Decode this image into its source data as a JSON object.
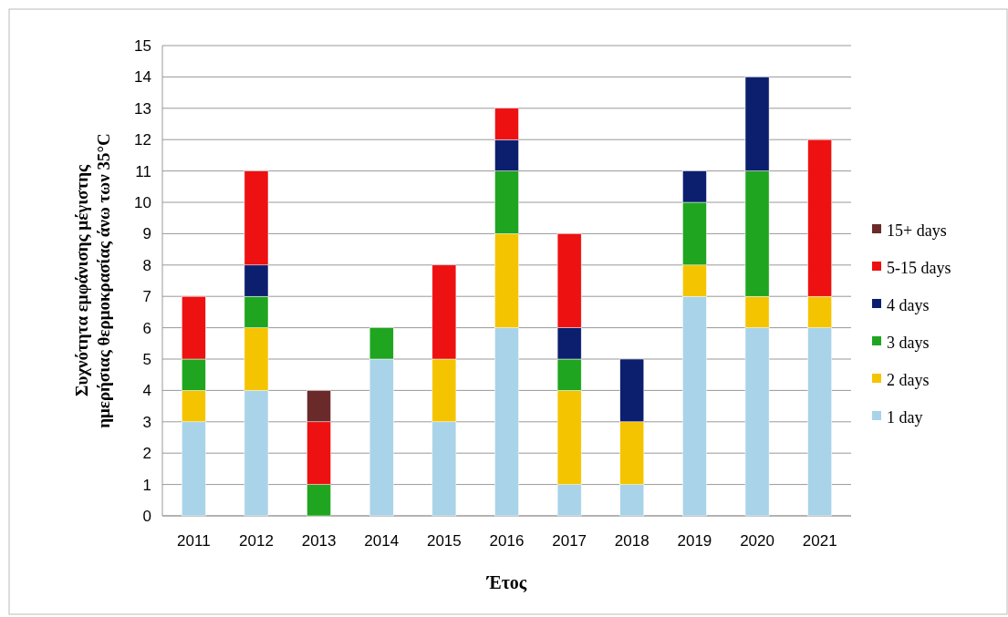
{
  "chart_data": {
    "type": "bar",
    "stacked": true,
    "xlabel": "Έτος",
    "ylabel": "Συχνότητα εμφάνισης μέγιστης\nημερήσιας θερμοκρασίας άνω των 35°C",
    "categories": [
      "2011",
      "2012",
      "2013",
      "2014",
      "2015",
      "2016",
      "2017",
      "2018",
      "2019",
      "2020",
      "2021"
    ],
    "series": [
      {
        "name": "1 day",
        "color": "#a9d3e8",
        "values": [
          3,
          4,
          0,
          5,
          3,
          6,
          1,
          1,
          7,
          6,
          6
        ]
      },
      {
        "name": "2 days",
        "color": "#f5c400",
        "values": [
          1,
          2,
          0,
          0,
          2,
          3,
          3,
          2,
          1,
          1,
          1
        ]
      },
      {
        "name": "3 days",
        "color": "#1fa51f",
        "values": [
          1,
          1,
          1,
          1,
          0,
          2,
          1,
          0,
          2,
          4,
          0
        ]
      },
      {
        "name": "4 days",
        "color": "#0c1f6e",
        "values": [
          0,
          1,
          0,
          0,
          0,
          1,
          1,
          2,
          1,
          3,
          0
        ]
      },
      {
        "name": "5-15 days",
        "color": "#ee1111",
        "values": [
          2,
          3,
          2,
          0,
          3,
          1,
          3,
          0,
          0,
          0,
          5
        ]
      },
      {
        "name": "15+ days",
        "color": "#6b2a2a",
        "values": [
          0,
          0,
          1,
          0,
          0,
          0,
          0,
          0,
          0,
          0,
          0
        ]
      }
    ],
    "ylim": [
      0,
      15
    ],
    "yticks": [
      0,
      1,
      2,
      3,
      4,
      5,
      6,
      7,
      8,
      9,
      10,
      11,
      12,
      13,
      14,
      15
    ],
    "grid": "y",
    "legend": "right"
  }
}
